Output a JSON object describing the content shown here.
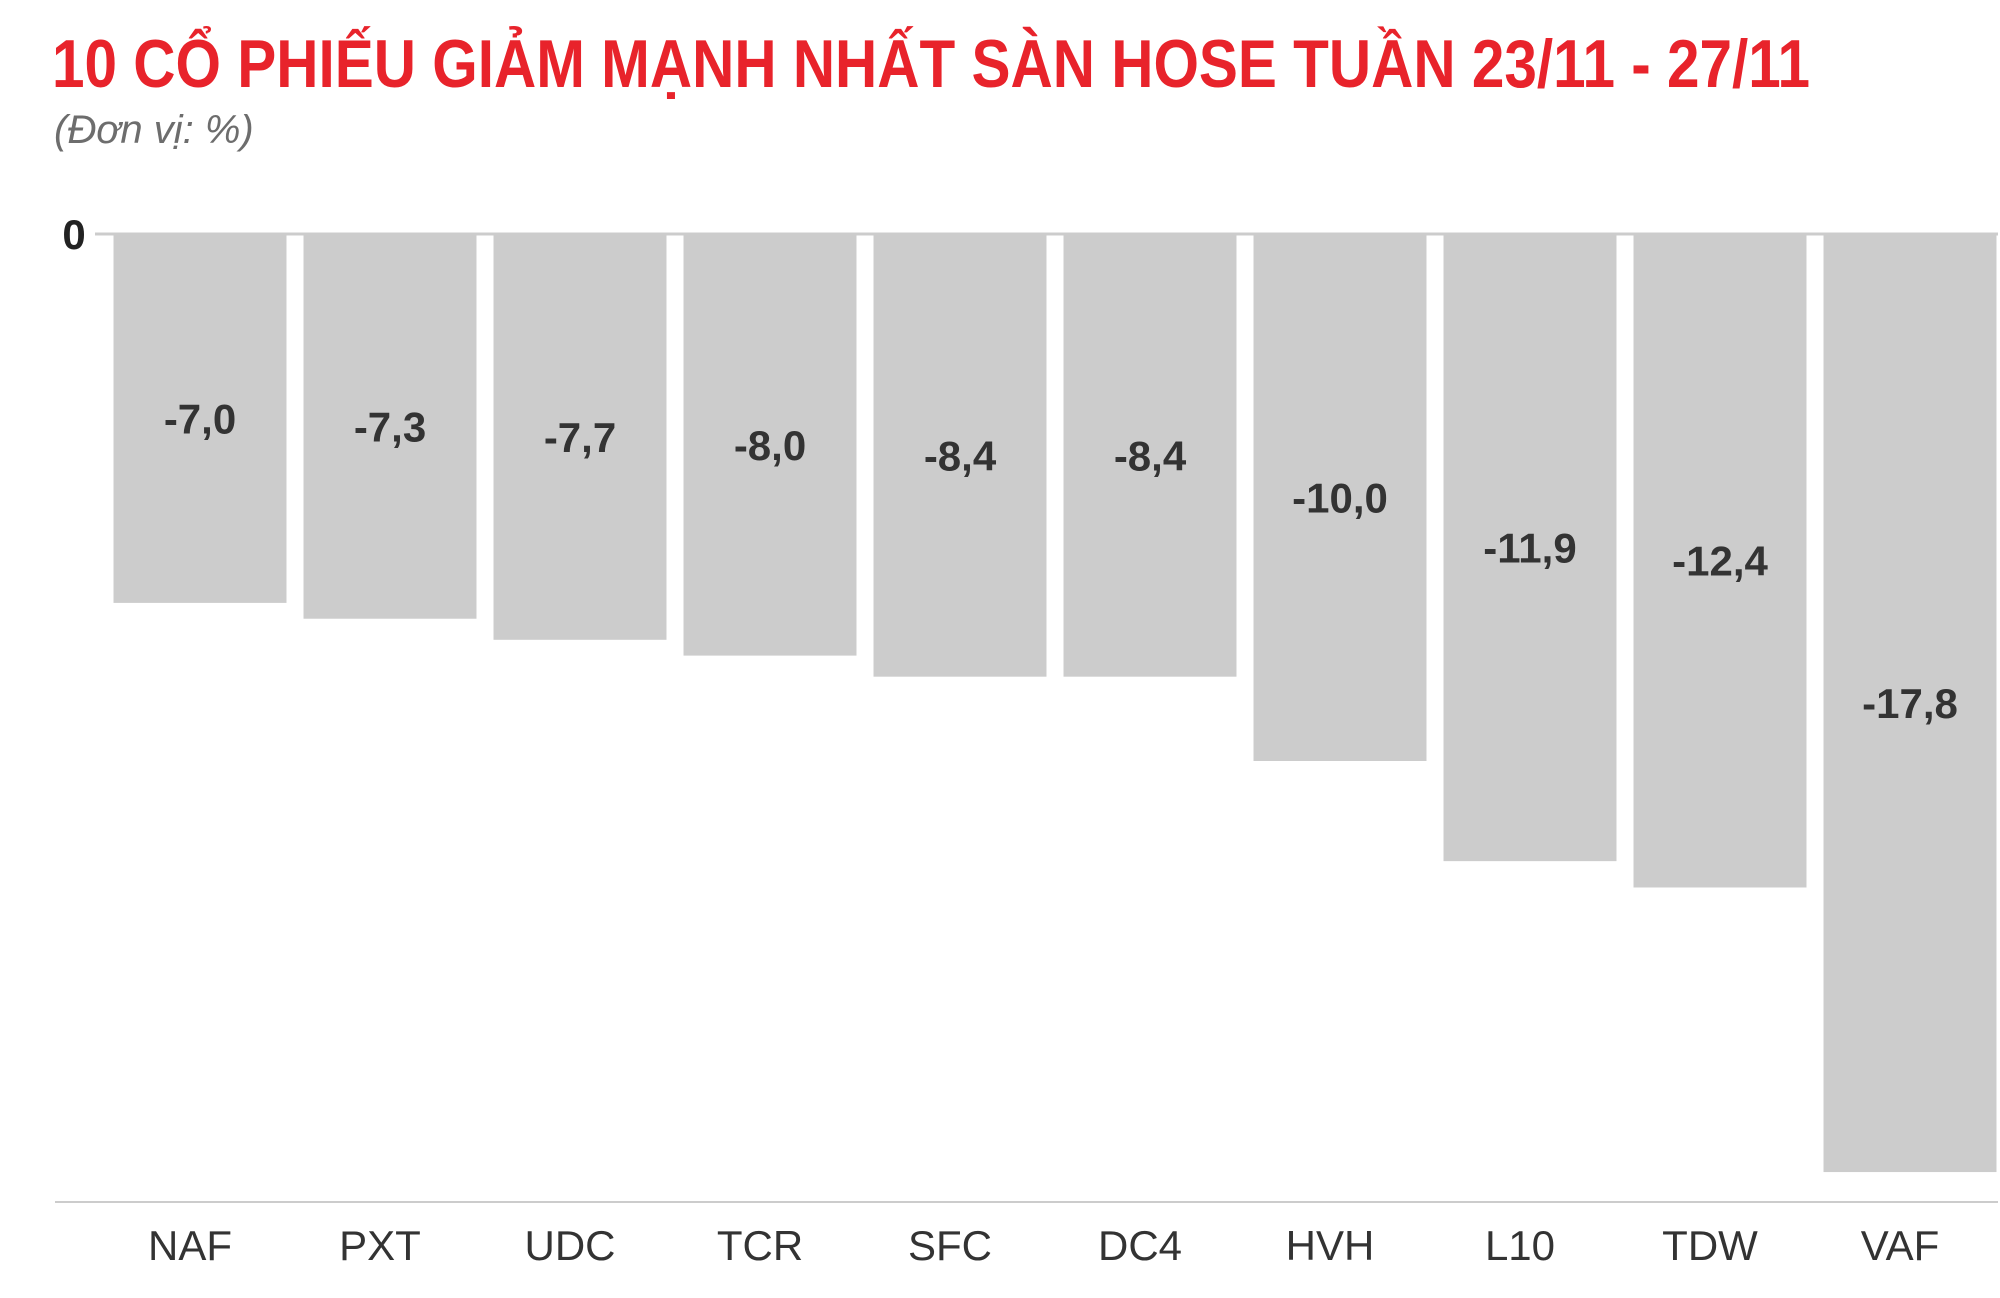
{
  "header": {
    "title": "10 CỔ PHIẾU GIẢM MẠNH NHẤT SÀN HOSE TUẦN 23/11 - 27/11",
    "subtitle": "(Đơn vị: %)"
  },
  "colors": {
    "title": "#e8232b",
    "bar": "#cccccc",
    "axis": "#cccccc",
    "text": "#333333"
  },
  "chart_data": {
    "type": "bar",
    "title": "10 CỔ PHIẾU GIẢM MẠNH NHẤT SÀN HOSE TUẦN 23/11 - 27/11",
    "subtitle": "(Đơn vị: %)",
    "categories": [
      "NAF",
      "PXT",
      "UDC",
      "TCR",
      "SFC",
      "DC4",
      "HVH",
      "L10",
      "TDW",
      "VAF"
    ],
    "values": [
      -7.0,
      -7.3,
      -7.7,
      -8.0,
      -8.4,
      -8.4,
      -10.0,
      -11.9,
      -12.4,
      -17.8
    ],
    "value_labels": [
      "-7,0",
      "-7,3",
      "-7,7",
      "-8,0",
      "-8,4",
      "-8,4",
      "-10,0",
      "-11,9",
      "-12,4",
      "-17,8"
    ],
    "zero_label": "0",
    "xlabel": "",
    "ylabel": "",
    "ylim": [
      -17.8,
      0
    ],
    "grid": false,
    "legend": "none"
  }
}
